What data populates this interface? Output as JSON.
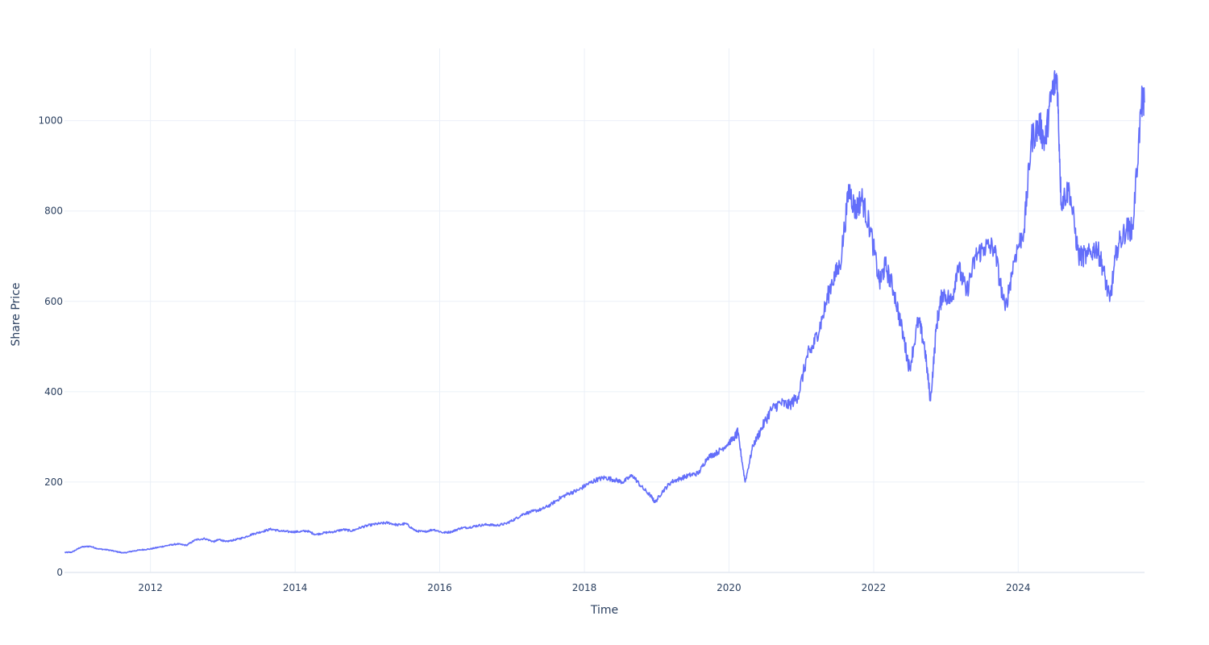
{
  "chart_data": {
    "type": "line",
    "title": "",
    "xlabel": "Time",
    "ylabel": "Share Price",
    "x_tick_labels": [
      "2012",
      "2014",
      "2016",
      "2018",
      "2020",
      "2022",
      "2024"
    ],
    "y_tick_labels": [
      "0",
      "200",
      "400",
      "600",
      "800",
      "1000"
    ],
    "y_ticks": [
      0,
      200,
      400,
      600,
      800,
      1000
    ],
    "xlim": [
      "2010-10-24",
      "2025-09-30"
    ],
    "ylim": [
      0,
      1160
    ],
    "grid": true,
    "line_color": "#636efa",
    "series": [
      {
        "x": [
          "2010-10-25",
          "2010-12-01",
          "2011-01-15",
          "2011-03-01",
          "2011-04-15",
          "2011-06-01",
          "2011-07-15",
          "2011-08-20",
          "2011-10-01",
          "2011-11-15",
          "2012-01-01",
          "2012-02-15",
          "2012-04-01",
          "2012-05-15",
          "2012-07-01",
          "2012-08-15",
          "2012-10-01",
          "2012-11-15",
          "2012-12-15",
          "2013-01-15",
          "2013-03-01",
          "2013-04-15",
          "2013-06-01",
          "2013-07-15",
          "2013-09-01",
          "2013-10-15",
          "2013-12-01",
          "2014-01-15",
          "2014-03-01",
          "2014-04-15",
          "2014-06-01",
          "2014-07-15",
          "2014-09-01",
          "2014-10-15",
          "2014-12-01",
          "2015-01-15",
          "2015-03-01",
          "2015-04-15",
          "2015-06-01",
          "2015-07-15",
          "2015-09-01",
          "2015-10-15",
          "2015-12-01",
          "2016-01-20",
          "2016-03-01",
          "2016-04-15",
          "2016-06-01",
          "2016-07-15",
          "2016-09-01",
          "2016-10-15",
          "2016-12-01",
          "2017-01-15",
          "2017-03-01",
          "2017-04-15",
          "2017-06-01",
          "2017-07-15",
          "2017-09-01",
          "2017-10-15",
          "2017-12-01",
          "2018-01-15",
          "2018-03-01",
          "2018-04-15",
          "2018-06-01",
          "2018-07-15",
          "2018-09-01",
          "2018-10-15",
          "2018-12-01",
          "2018-12-24",
          "2019-02-01",
          "2019-03-15",
          "2019-05-01",
          "2019-06-15",
          "2019-08-01",
          "2019-09-15",
          "2019-11-01",
          "2019-12-15",
          "2020-01-31",
          "2020-02-15",
          "2020-03-23",
          "2020-05-01",
          "2020-06-15",
          "2020-08-01",
          "2020-09-15",
          "2020-11-01",
          "2020-12-15",
          "2021-01-31",
          "2021-03-01",
          "2021-04-15",
          "2021-06-01",
          "2021-07-15",
          "2021-08-30",
          "2021-10-01",
          "2021-11-01",
          "2021-12-15",
          "2022-01-31",
          "2022-03-01",
          "2022-04-15",
          "2022-06-01",
          "2022-07-01",
          "2022-08-15",
          "2022-09-15",
          "2022-10-15",
          "2022-11-15",
          "2022-12-15",
          "2023-01-31",
          "2023-03-01",
          "2023-04-15",
          "2023-06-01",
          "2023-07-15",
          "2023-09-01",
          "2023-10-27",
          "2023-12-15",
          "2024-01-31",
          "2024-03-08",
          "2024-04-19",
          "2024-05-15",
          "2024-06-18",
          "2024-07-15",
          "2024-08-05",
          "2024-09-15",
          "2024-11-01",
          "2024-12-15",
          "2025-01-31",
          "2025-03-01",
          "2025-04-07",
          "2025-05-15",
          "2025-06-30",
          "2025-08-01",
          "2025-09-15",
          "2025-09-30"
        ],
        "y": [
          44,
          45,
          56,
          58,
          52,
          50,
          46,
          43,
          47,
          50,
          52,
          56,
          60,
          63,
          60,
          72,
          75,
          68,
          73,
          68,
          72,
          77,
          85,
          90,
          96,
          92,
          90,
          90,
          92,
          84,
          88,
          90,
          95,
          92,
          100,
          105,
          108,
          110,
          105,
          108,
          92,
          90,
          95,
          88,
          90,
          98,
          100,
          104,
          106,
          104,
          108,
          118,
          130,
          135,
          140,
          150,
          165,
          175,
          182,
          195,
          205,
          210,
          205,
          200,
          215,
          190,
          170,
          155,
          180,
          200,
          208,
          215,
          220,
          255,
          265,
          280,
          300,
          310,
          200,
          280,
          320,
          360,
          375,
          370,
          390,
          480,
          500,
          560,
          640,
          680,
          850,
          800,
          830,
          760,
          640,
          680,
          620,
          520,
          450,
          560,
          500,
          380,
          550,
          620,
          600,
          680,
          620,
          700,
          720,
          720,
          580,
          700,
          760,
          960,
          990,
          950,
          1060,
          1100,
          820,
          850,
          700,
          700,
          720,
          680,
          600,
          720,
          760,
          760,
          1040,
          1040
        ]
      }
    ]
  }
}
